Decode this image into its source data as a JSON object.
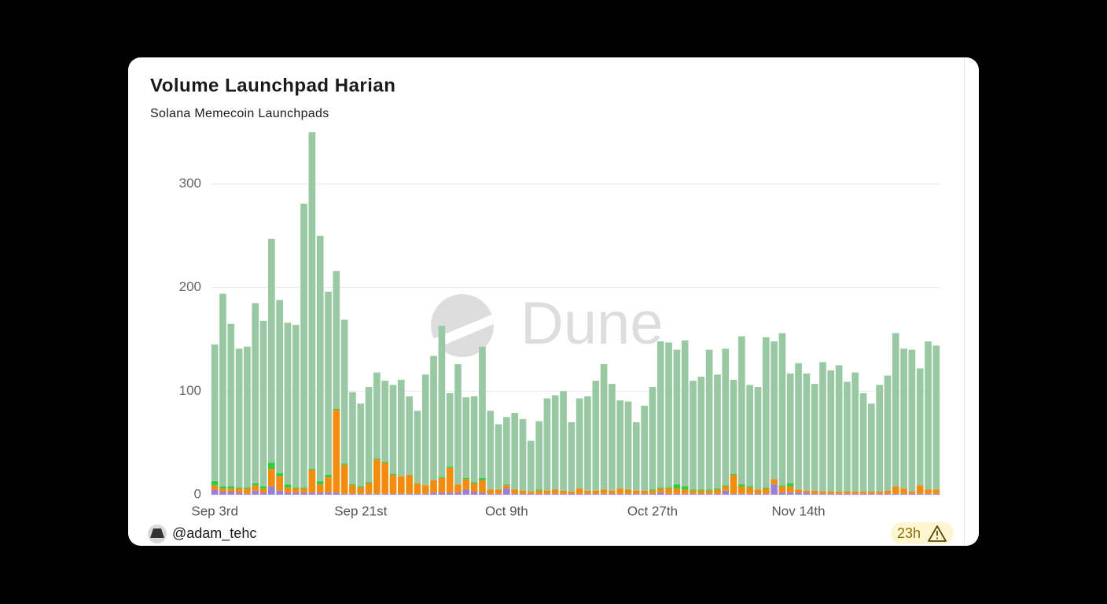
{
  "chart_data": {
    "type": "bar",
    "stacked": true,
    "title": "Volume Launchpad Harian",
    "subtitle": "Solana Memecoin Launchpads",
    "watermark": "Dune",
    "author": "@adam_tehc",
    "age": "23h",
    "categories": [
      "Sep 3rd",
      null,
      null,
      null,
      null,
      null,
      null,
      null,
      null,
      null,
      null,
      null,
      null,
      null,
      null,
      null,
      null,
      null,
      "Sep 21st",
      null,
      null,
      null,
      null,
      null,
      null,
      null,
      null,
      null,
      null,
      null,
      null,
      null,
      null,
      null,
      null,
      null,
      "Oct 9th",
      null,
      null,
      null,
      null,
      null,
      null,
      null,
      null,
      null,
      null,
      null,
      null,
      null,
      null,
      null,
      null,
      null,
      "Oct 27th",
      null,
      null,
      null,
      null,
      null,
      null,
      null,
      null,
      null,
      null,
      null,
      null,
      null,
      null,
      null,
      null,
      null,
      "Nov 14th",
      null,
      null,
      null,
      null,
      null,
      null,
      null,
      null,
      null,
      null,
      null,
      null,
      null,
      null,
      null,
      null,
      null
    ],
    "series": [
      {
        "color": "#9b7fd4",
        "values": [
          5,
          3,
          3,
          2,
          1,
          4,
          2,
          8,
          4,
          2,
          2,
          2,
          2,
          2,
          2,
          2,
          1,
          1,
          1,
          1,
          1,
          1,
          1,
          1,
          1,
          1,
          1,
          2,
          2,
          2,
          2,
          5,
          3,
          2,
          1,
          1,
          6,
          1,
          1,
          1,
          1,
          1,
          1,
          1,
          1,
          1,
          1,
          1,
          1,
          1,
          1,
          1,
          1,
          1,
          1,
          2,
          1,
          1,
          1,
          1,
          1,
          1,
          1,
          4,
          1,
          1,
          1,
          1,
          1,
          10,
          2,
          2,
          2,
          2,
          1,
          1,
          1,
          1,
          1,
          1,
          1,
          1,
          1,
          1,
          1,
          1,
          1,
          1,
          1,
          1
        ]
      },
      {
        "color": "#f28c0f",
        "values": [
          4,
          3,
          3,
          4,
          5,
          5,
          4,
          17,
          14,
          5,
          4,
          4,
          22,
          8,
          15,
          80,
          28,
          8,
          6,
          10,
          33,
          30,
          18,
          17,
          18,
          10,
          8,
          12,
          14,
          24,
          8,
          10,
          8,
          12,
          4,
          4,
          3,
          4,
          3,
          2,
          3,
          3,
          4,
          3,
          2,
          5,
          3,
          3,
          4,
          3,
          5,
          4,
          3,
          3,
          3,
          4,
          5,
          5,
          4,
          3,
          3,
          3,
          4,
          4,
          18,
          7,
          6,
          4,
          5,
          5,
          6,
          6,
          3,
          2,
          3,
          2,
          2,
          2,
          2,
          2,
          2,
          2,
          2,
          3,
          7,
          5,
          2,
          8,
          4,
          4
        ]
      },
      {
        "color": "#2ecc40",
        "values": [
          4,
          2,
          2,
          1,
          1,
          2,
          2,
          6,
          3,
          3,
          1,
          1,
          1,
          3,
          2,
          1,
          1,
          1,
          1,
          1,
          1,
          1,
          1,
          0,
          0,
          0,
          0,
          0,
          1,
          1,
          0,
          1,
          1,
          2,
          0,
          0,
          1,
          0,
          0,
          0,
          1,
          0,
          0,
          0,
          0,
          0,
          0,
          0,
          0,
          0,
          0,
          0,
          0,
          0,
          1,
          1,
          1,
          4,
          3,
          1,
          1,
          1,
          1,
          1,
          1,
          2,
          1,
          0,
          1,
          0,
          1,
          3,
          0,
          0,
          0,
          0,
          0,
          0,
          0,
          0,
          0,
          0,
          0,
          0,
          0,
          0,
          0,
          0,
          0,
          0
        ]
      },
      {
        "color": "#98c9a3",
        "values": [
          132,
          186,
          157,
          134,
          136,
          174,
          160,
          216,
          167,
          156,
          157,
          274,
          325,
          237,
          177,
          133,
          139,
          89,
          80,
          92,
          83,
          78,
          86,
          93,
          76,
          70,
          107,
          120,
          146,
          71,
          116,
          78,
          83,
          127,
          76,
          63,
          65,
          74,
          69,
          49,
          66,
          89,
          91,
          96,
          67,
          87,
          91,
          106,
          121,
          103,
          85,
          85,
          66,
          82,
          99,
          141,
          140,
          130,
          141,
          105,
          109,
          135,
          110,
          132,
          91,
          143,
          98,
          99,
          145,
          133,
          147,
          106,
          122,
          113,
          103,
          125,
          117,
          122,
          106,
          115,
          95,
          85,
          103,
          111,
          148,
          135,
          137,
          113,
          143,
          139
        ]
      }
    ],
    "ylim": [
      0,
      360
    ],
    "yticks": [
      0,
      100,
      200,
      300
    ],
    "grid": true
  }
}
